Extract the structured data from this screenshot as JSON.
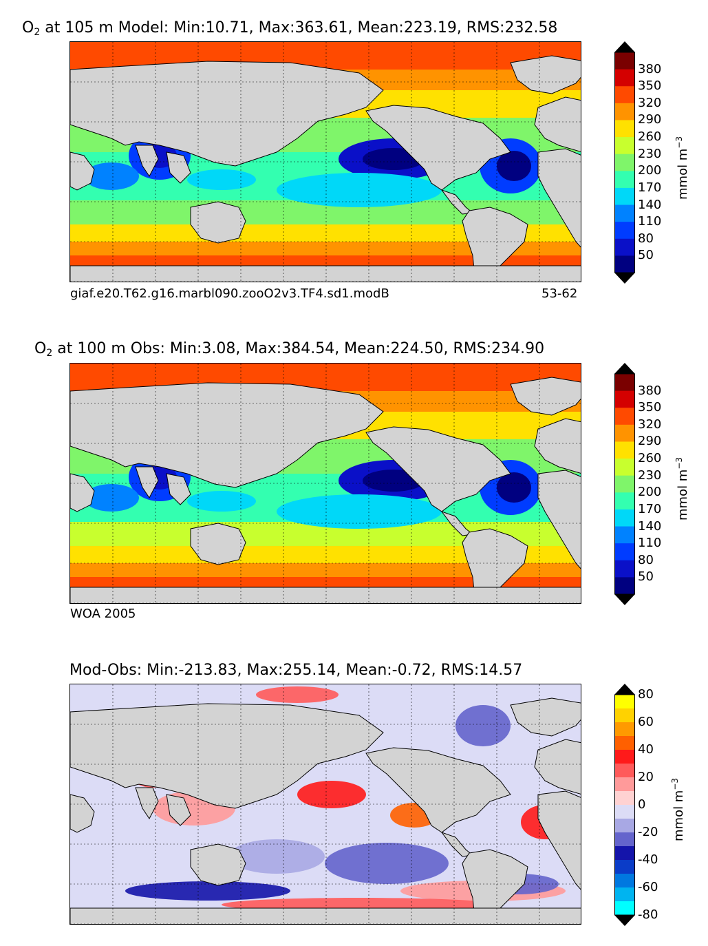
{
  "chart_data": [
    {
      "type": "heatmap",
      "title": {
        "prefix": "O",
        "sub": "2",
        "text": " at 105 m Model: Min:10.71, Max:363.61, Mean:223.19, RMS:232.58"
      },
      "caption_left": "giaf.e20.T62.g16.marbl090.zooO2v3.TF4.sd1.modB",
      "caption_right": "53-62",
      "colorbar": {
        "unit": "mmol m",
        "unit_exp": "−3",
        "ticks": [
          "380",
          "350",
          "320",
          "290",
          "260",
          "230",
          "200",
          "170",
          "140",
          "110",
          "80",
          "50"
        ],
        "colors": [
          "#7a0000",
          "#d40000",
          "#ff4a00",
          "#ff9300",
          "#ffe100",
          "#c8ff2e",
          "#7ff56a",
          "#33ffb0",
          "#00d8f8",
          "#0082ff",
          "#003cff",
          "#0a10c8",
          "#000080"
        ],
        "extend": "both"
      }
    },
    {
      "type": "heatmap",
      "title": {
        "prefix": "O",
        "sub": "2",
        "text": " at 100 m Obs: Min:3.08, Max:384.54, Mean:224.50, RMS:234.90"
      },
      "caption_left": "WOA 2005",
      "caption_right": "",
      "colorbar": {
        "unit": "mmol m",
        "unit_exp": "−3",
        "ticks": [
          "380",
          "350",
          "320",
          "290",
          "260",
          "230",
          "200",
          "170",
          "140",
          "110",
          "80",
          "50"
        ],
        "colors": [
          "#7a0000",
          "#d40000",
          "#ff4a00",
          "#ff9300",
          "#ffe100",
          "#c8ff2e",
          "#7ff56a",
          "#33ffb0",
          "#00d8f8",
          "#0082ff",
          "#003cff",
          "#0a10c8",
          "#000080"
        ],
        "extend": "both"
      }
    },
    {
      "type": "heatmap",
      "title": {
        "prefix": "",
        "sub": "",
        "text": "Mod-Obs: Min:-213.83, Max:255.14, Mean:-0.72, RMS:14.57"
      },
      "caption_left": "",
      "caption_right": "",
      "colorbar": {
        "unit": "mmol m",
        "unit_exp": "−3",
        "ticks": [
          "80",
          "60",
          "40",
          "20",
          "0",
          "-20",
          "-40",
          "-60",
          "-80"
        ],
        "colors": [
          "#ffff00",
          "#ffd200",
          "#ff9a00",
          "#ff6000",
          "#ff1a1a",
          "#ff5a5a",
          "#ff9a9a",
          "#ffd2d2",
          "#dcdcf6",
          "#a8a8e4",
          "#6464cc",
          "#1414aa",
          "#0a3cc8",
          "#0078e0",
          "#00b4f0",
          "#00ffff"
        ],
        "extend": "both"
      }
    }
  ]
}
